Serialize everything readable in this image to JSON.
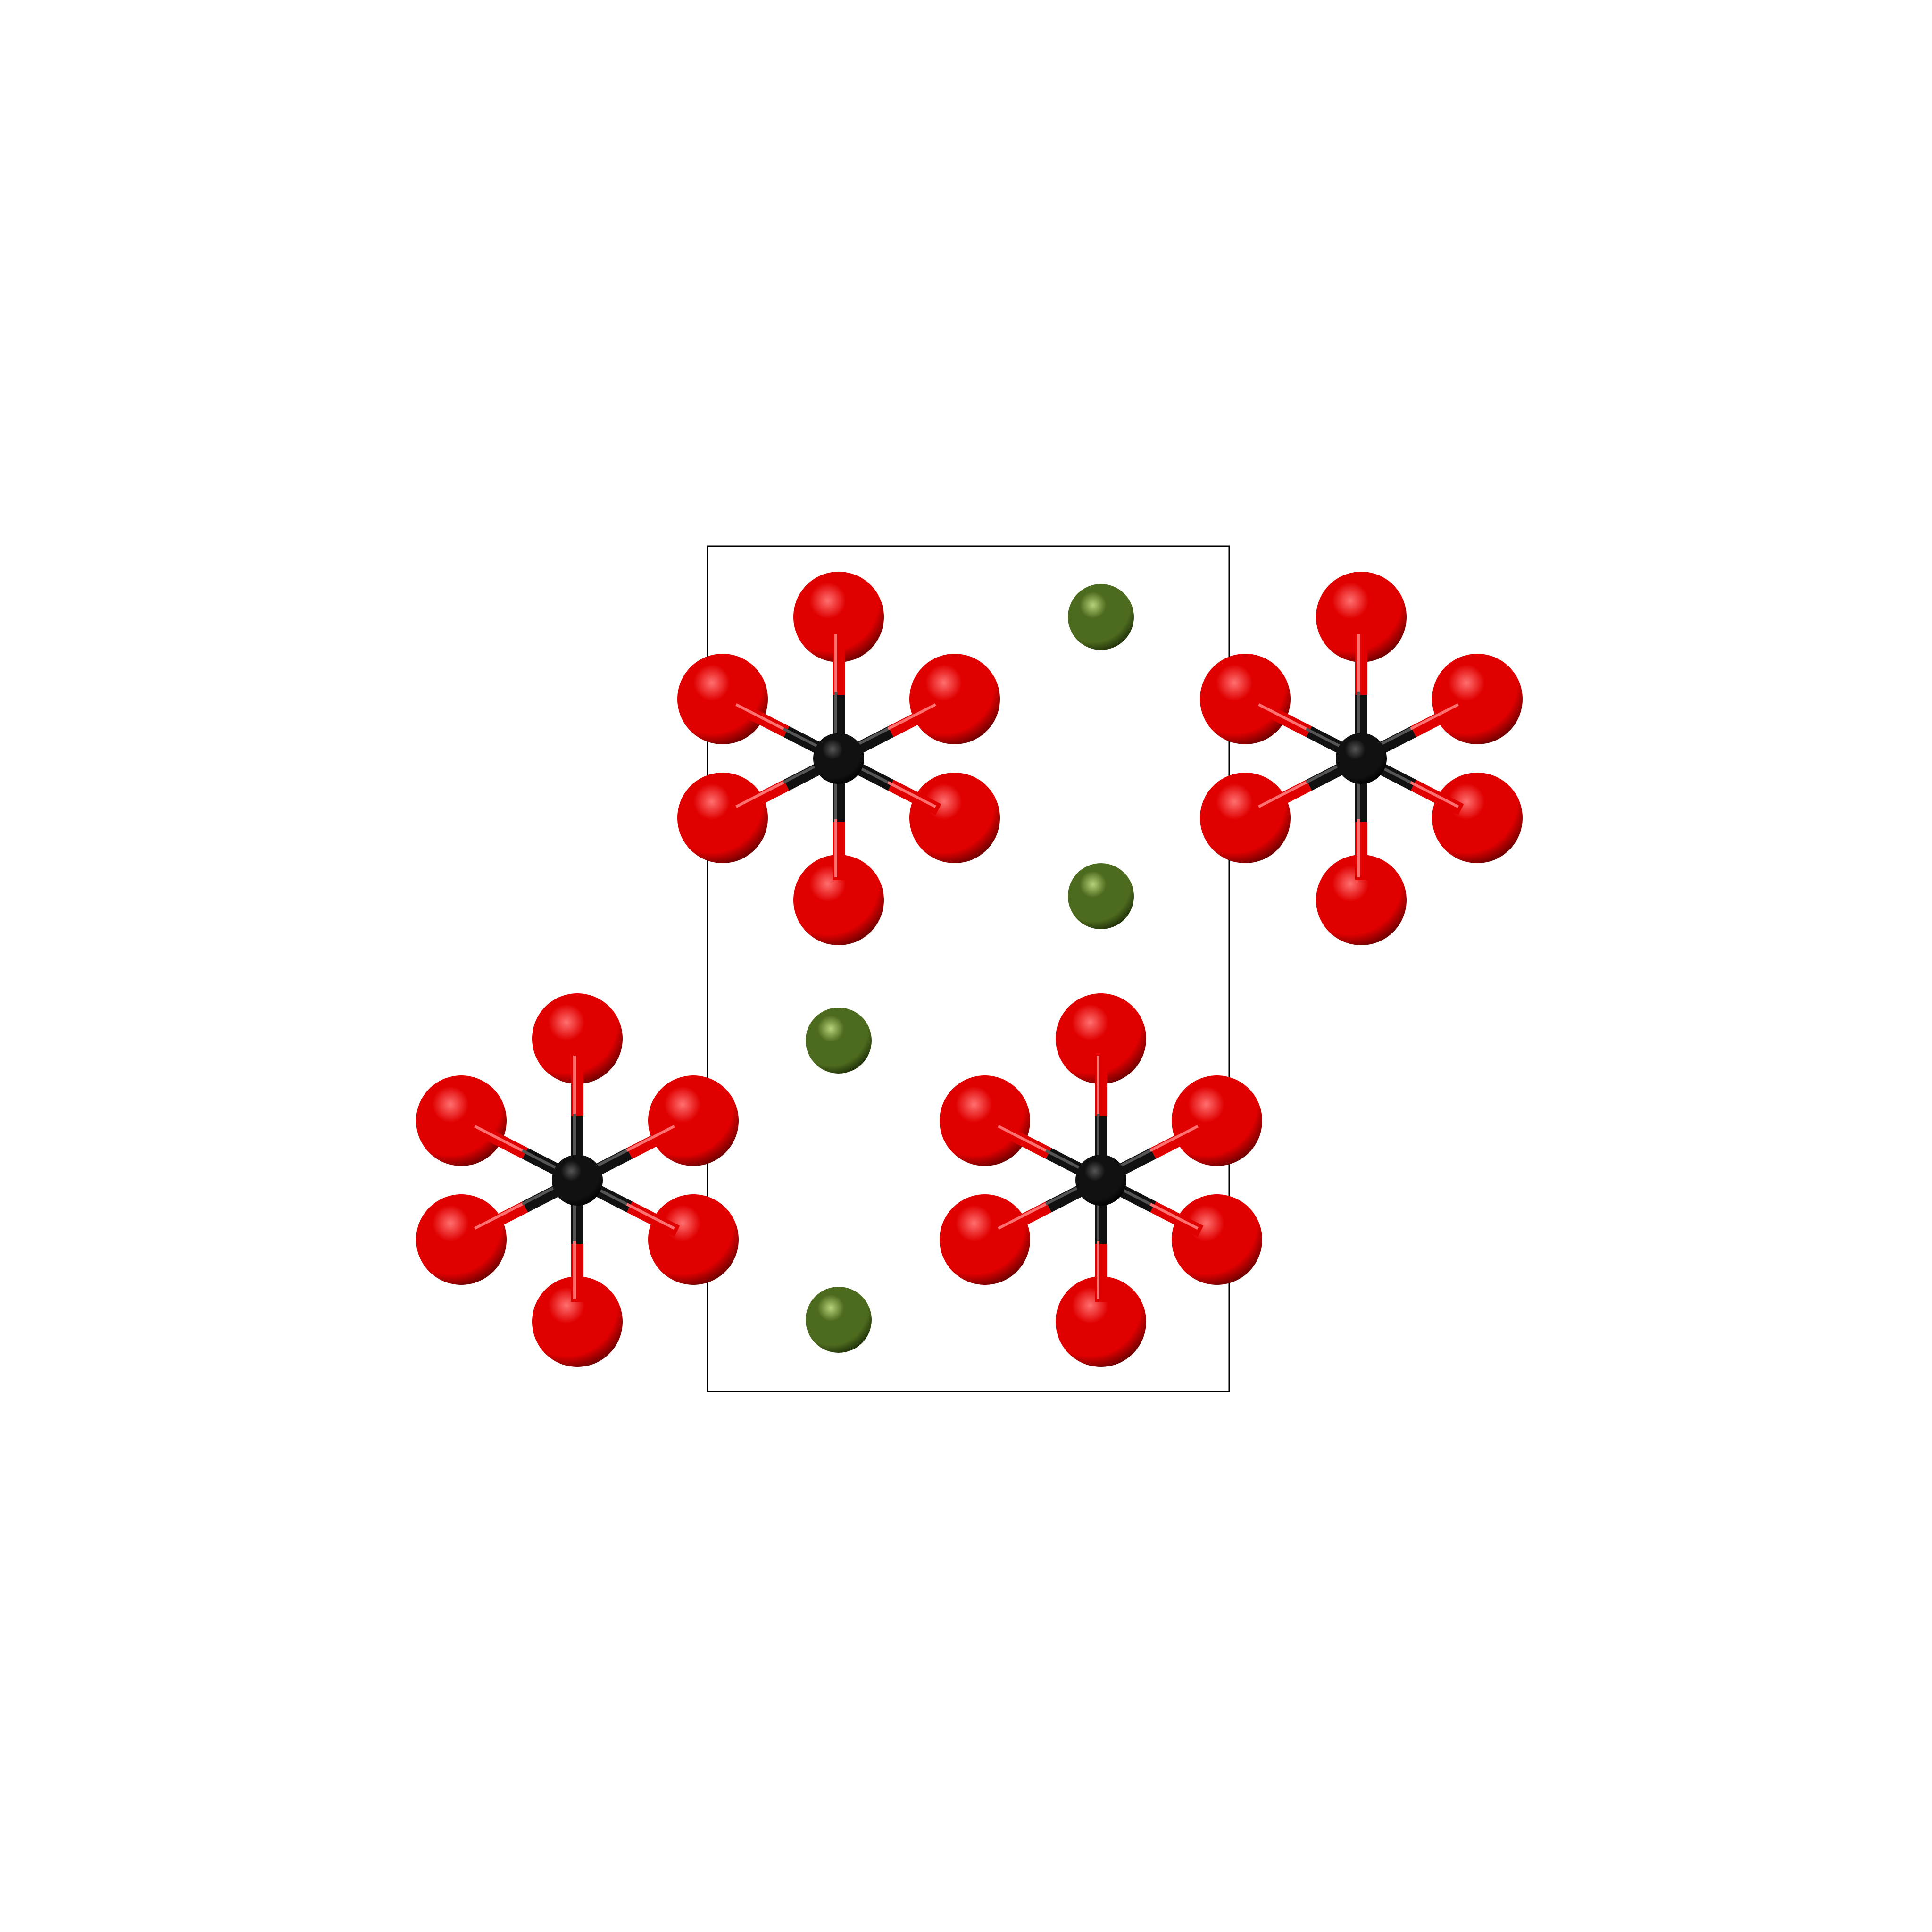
{
  "scene": {
    "background_color": "#ffffff",
    "unit_cell": {
      "visible": true,
      "edge_color": "#000000"
    },
    "elements": {
      "octahedral_center": {
        "color": "#111111",
        "highlight": "#555555",
        "shadow": "#000000"
      },
      "oxygen": {
        "color": "#e00000",
        "highlight": "#ff7070",
        "shadow": "#6a0000"
      },
      "cation": {
        "color": "#4d6b1e",
        "highlight": "#b7d27a",
        "shadow": "#1f2f08"
      }
    },
    "octahedra": [
      {
        "id": "octahedron-1"
      },
      {
        "id": "octahedron-2"
      },
      {
        "id": "octahedron-3"
      },
      {
        "id": "octahedron-4"
      }
    ],
    "cations": [
      {
        "id": "cation-1"
      },
      {
        "id": "cation-2"
      },
      {
        "id": "cation-3"
      },
      {
        "id": "cation-4"
      }
    ]
  }
}
